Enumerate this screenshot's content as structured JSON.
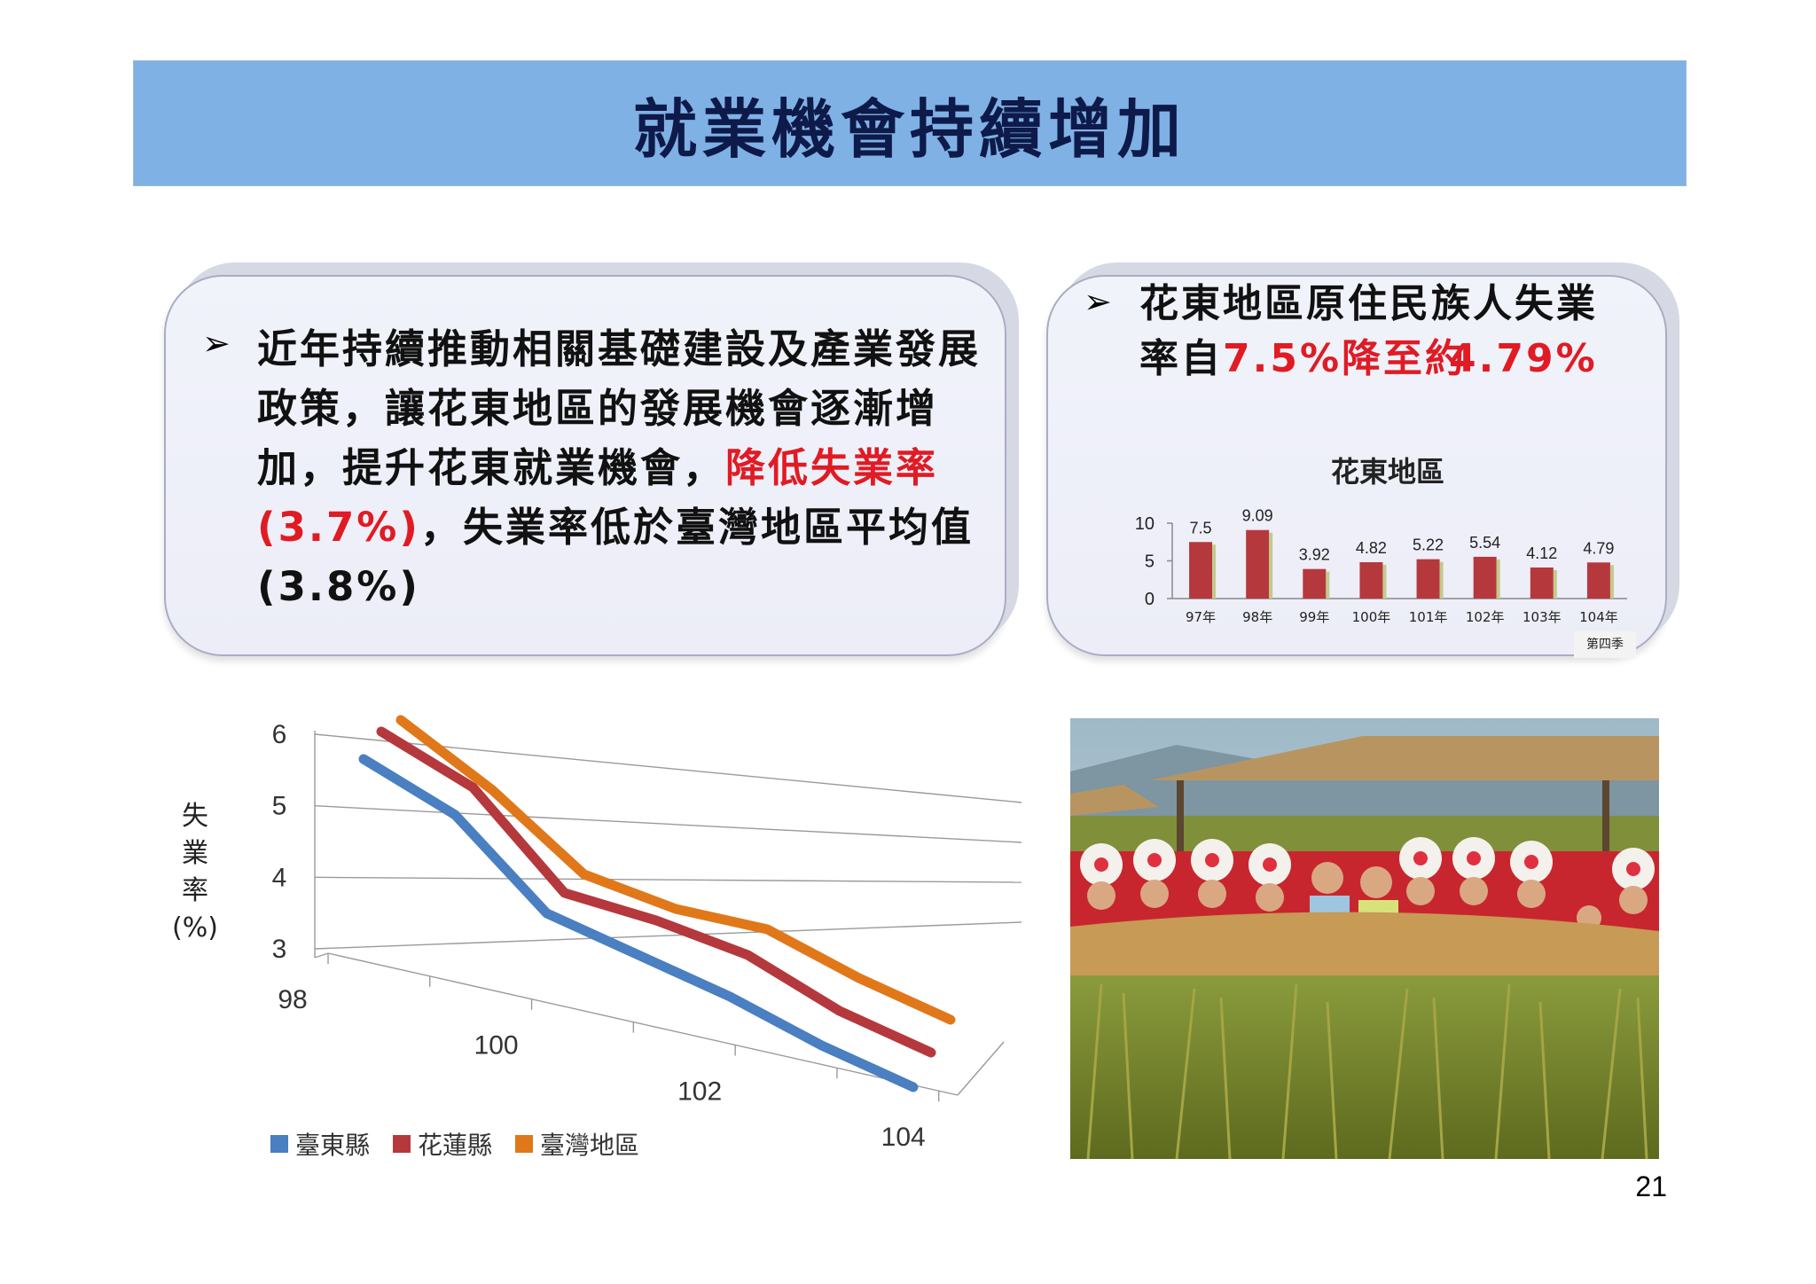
{
  "title": "就業機會持續增加",
  "left_box": {
    "bullet": "➢",
    "text_black_1": "近年持續推動相關基礎建設及產業發展政策，讓花東地區的發展機會逐漸增加，提升花東就業機會，",
    "text_red_1": "降低失業率",
    "text_red_2": "(3.7%)",
    "text_black_2": "，失業率低於臺灣地區平均值",
    "text_black_3": "(3.8%)"
  },
  "right_box": {
    "bullet": "➢",
    "text_black_1": "花東地區原住民族人失業率自",
    "text_red_1": "7.5%",
    "text_red_2": "降至約",
    "text_red_3": "4.79%"
  },
  "page_number": "21",
  "colors": {
    "title_bar": "#7fb1e4",
    "red_text": "#e01b24",
    "bar": "#b5383d",
    "taitung": "#4a7fc1",
    "hualien": "#b5383d",
    "taiwan": "#e0781a"
  },
  "photo_icon": "harvest-festival-photo",
  "chart_data": [
    {
      "type": "bar",
      "title": "花東地區",
      "categories": [
        "97年",
        "98年",
        "99年",
        "100年",
        "101年",
        "102年",
        "103年",
        "104年"
      ],
      "category_note": "第四季",
      "values": [
        7.5,
        9.09,
        3.92,
        4.82,
        5.22,
        5.54,
        4.12,
        4.79
      ],
      "value_labels": [
        "7.5",
        "9.09",
        "3.92",
        "4.82",
        "5.22",
        "5.54",
        "4.12",
        "4.79"
      ],
      "y_ticks": [
        "10",
        "5",
        "0"
      ],
      "ylim": [
        0,
        10
      ]
    },
    {
      "type": "line",
      "ylabel_chars": [
        "失",
        "業",
        "率",
        "(%)"
      ],
      "x": [
        98,
        99,
        100,
        101,
        102,
        103,
        104
      ],
      "x_tick_labels": [
        "98",
        "100",
        "102",
        "104"
      ],
      "y_tick_labels": [
        "6",
        "5",
        "4",
        "3"
      ],
      "ylim": [
        3,
        6
      ],
      "series": [
        {
          "name": "臺東縣",
          "values": [
            5.8,
            5.2,
            4.0,
            3.6,
            3.2,
            2.7,
            2.3
          ]
        },
        {
          "name": "花蓮縣",
          "values": [
            6.0,
            5.4,
            4.1,
            3.9,
            3.6,
            3.0,
            2.6
          ]
        },
        {
          "name": "臺灣地區",
          "values": [
            6.0,
            5.2,
            4.2,
            3.9,
            3.8,
            3.3,
            2.9
          ]
        }
      ]
    }
  ]
}
